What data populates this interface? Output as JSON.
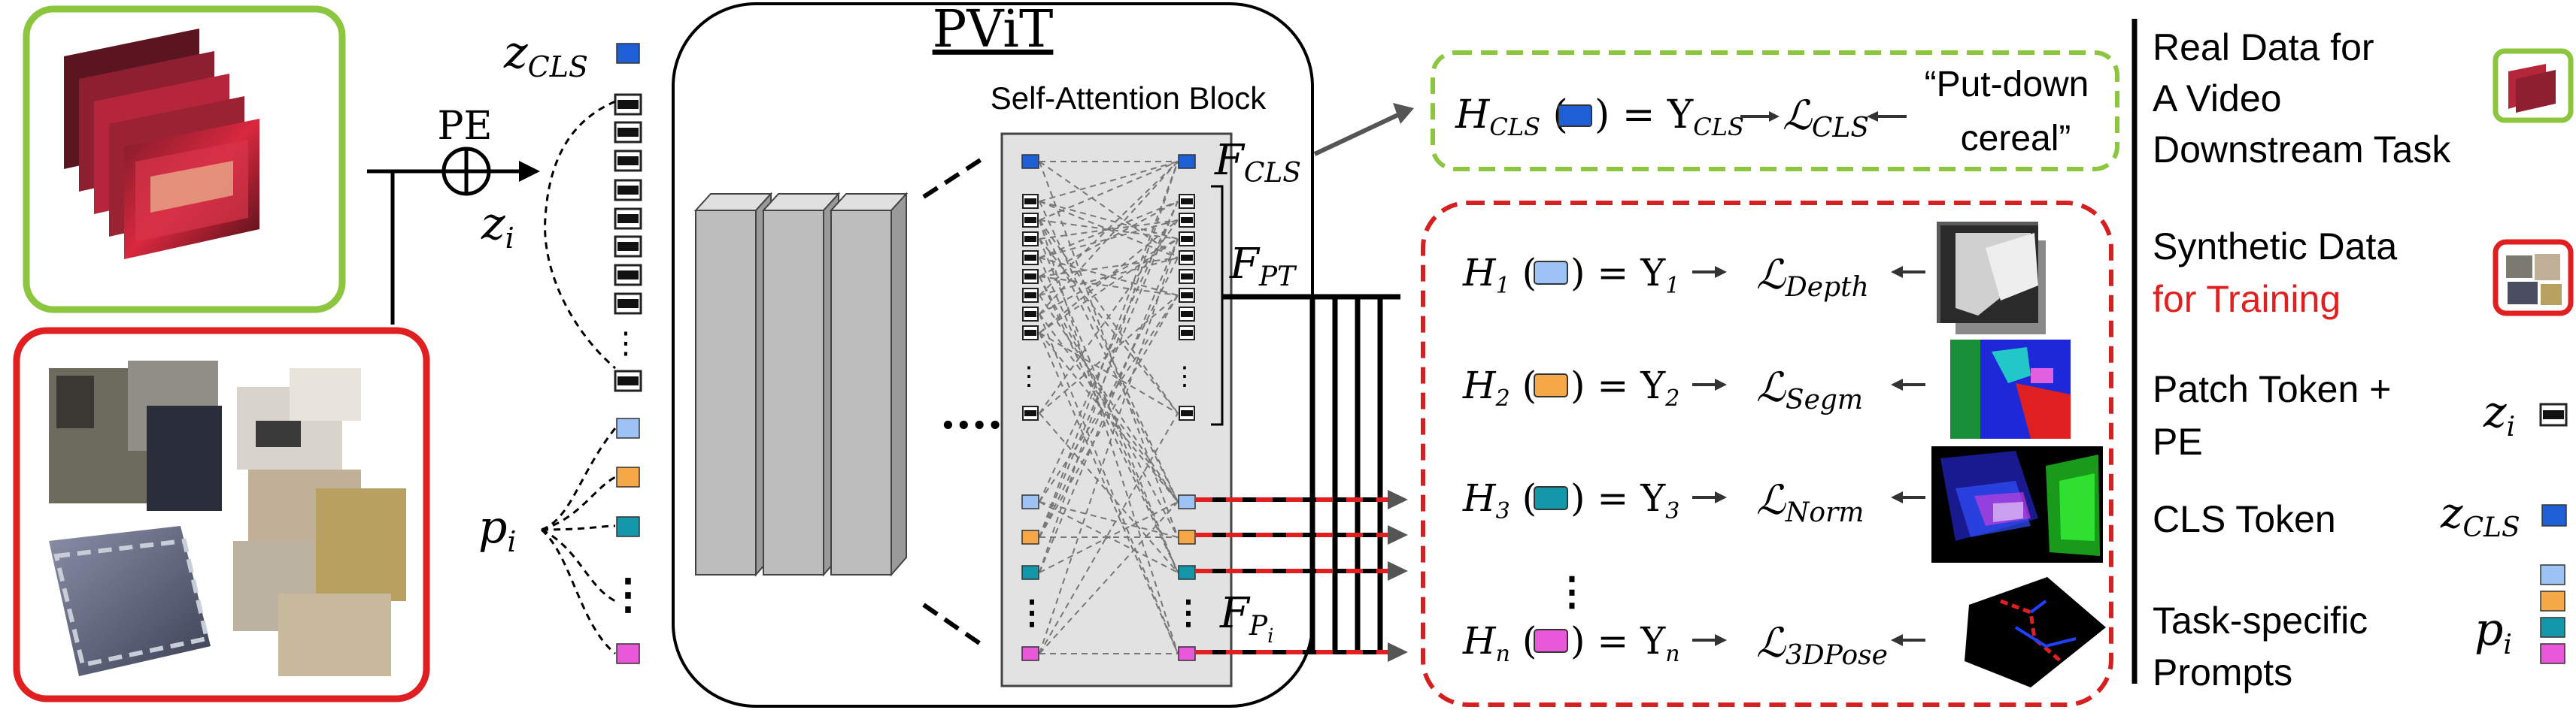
{
  "title": "PViT",
  "block_label": "Self-Attention Block",
  "pe_label": "PE",
  "token_labels": {
    "z_cls": "z",
    "z_cls_sub": "CLS",
    "z_i": "z",
    "z_i_sub": "i",
    "p_i": "p",
    "p_i_sub": "i"
  },
  "feature_labels": {
    "f_cls": "F",
    "f_cls_sub": "CLS",
    "f_pt": "F",
    "f_pt_sub": "PT",
    "f_pi": "F",
    "f_pi_sub": "P",
    "f_pi_subsub": "i"
  },
  "cls_head": {
    "h": "H",
    "h_sub": "CLS",
    "eq": ") = Y",
    "y_sub": "CLS",
    "loss": "ℒ",
    "loss_sub": "CLS",
    "target_line1": "“Put-down",
    "target_line2": "cereal”"
  },
  "task_heads": [
    {
      "h": "H",
      "sub": "1",
      "eq": ") = Y",
      "y_sub": "1",
      "loss_sub": "Depth",
      "color": "#9dc3f5"
    },
    {
      "h": "H",
      "sub": "2",
      "eq": ") = Y",
      "y_sub": "2",
      "loss_sub": "Segm",
      "color": "#f5a848"
    },
    {
      "h": "H",
      "sub": "3",
      "eq": ") = Y",
      "y_sub": "3",
      "loss_sub": "Norm",
      "color": "#1497a8"
    },
    {
      "h": "H",
      "sub": "n",
      "eq": ") = Y",
      "y_sub": "n",
      "loss_sub": "3DPose",
      "color": "#e858d8"
    }
  ],
  "legend": [
    {
      "line1": "Real Data for",
      "line2": "A Video",
      "line3": "Downstream Task"
    },
    {
      "line1": "Synthetic Data",
      "line2": "for Training"
    },
    {
      "line1": "Patch Token +",
      "line2": "PE"
    },
    {
      "line1": "CLS Token"
    },
    {
      "line1": "Task-specific",
      "line2": "Prompts"
    }
  ],
  "legend_symbols": {
    "z_i": "z",
    "z_i_sub": "i",
    "z_cls": "z",
    "z_cls_sub": "CLS",
    "p_i": "p",
    "p_i_sub": "i"
  },
  "colors": {
    "cls_token": "#1f5fd6",
    "prompt_1": "#9dc3f5",
    "prompt_2": "#f5a848",
    "prompt_3": "#1497a8",
    "prompt_n": "#e858d8",
    "real_data_border": "#8cc63f",
    "synthetic_border": "#e02020",
    "cls_box_border": "#8cc63f",
    "task_box_border": "#d42020",
    "training_text": "#e02020"
  }
}
